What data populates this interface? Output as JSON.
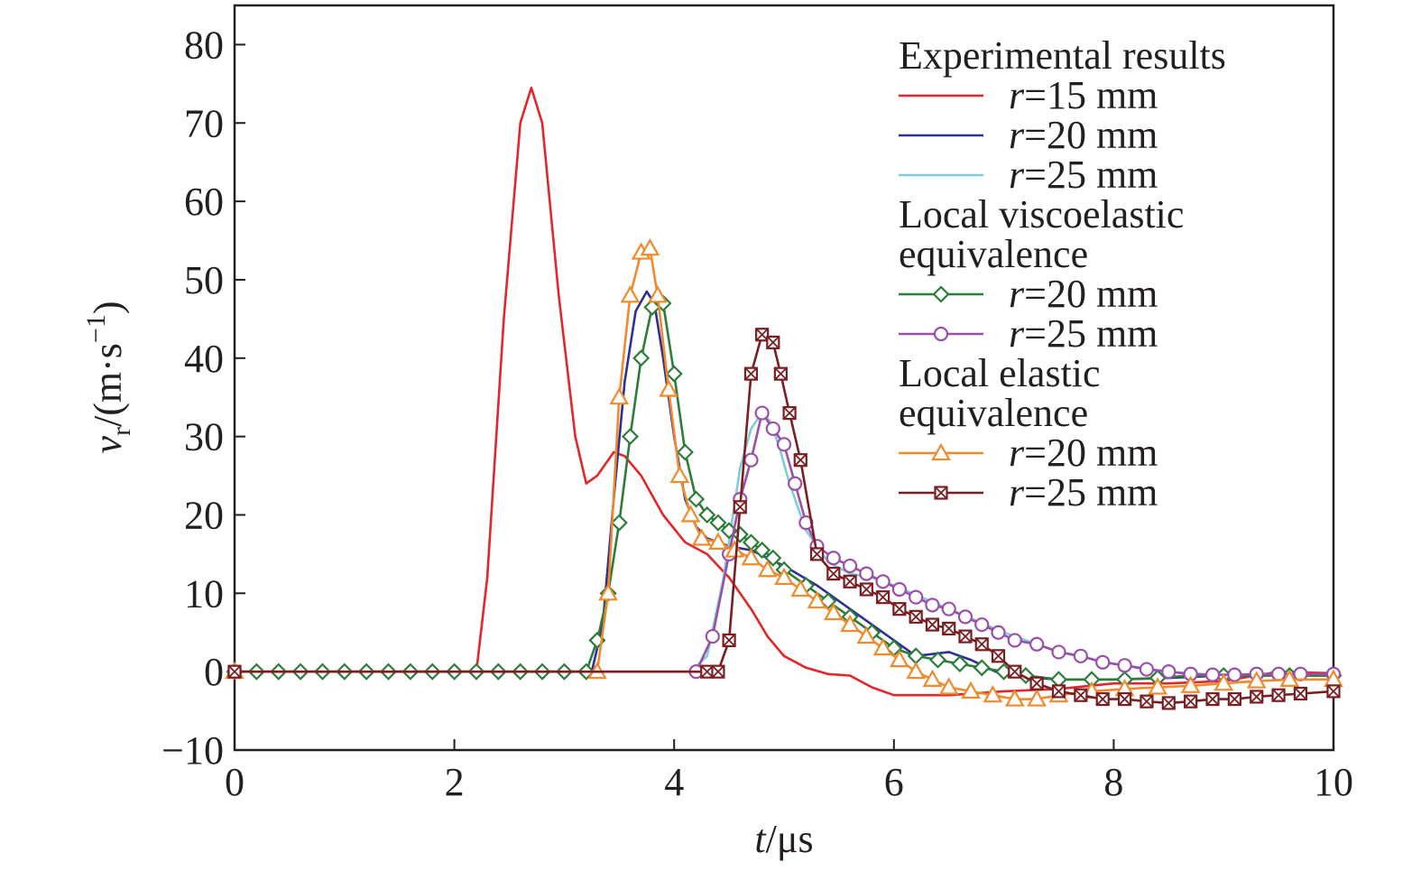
{
  "chart_data": {
    "type": "line",
    "xlabel_italic": "t",
    "xlabel_rest": "/μs",
    "ylabel_italic": "v",
    "ylabel_sub": "r",
    "ylabel_rest_a": "/(m·s",
    "ylabel_sup": "−1",
    "ylabel_rest_b": ")",
    "xlim": [
      0,
      10
    ],
    "ylim": [
      -10,
      85
    ],
    "x_ticks": [
      0,
      2,
      4,
      6,
      8,
      10
    ],
    "x_tick_labels": [
      "0",
      "2",
      "4",
      "6",
      "8",
      "10"
    ],
    "y_ticks": [
      -10,
      0,
      10,
      20,
      30,
      40,
      50,
      60,
      70,
      80
    ],
    "y_tick_labels": [
      "−10",
      "0",
      "10",
      "20",
      "30",
      "40",
      "50",
      "60",
      "70",
      "80"
    ],
    "grid": false,
    "legend_position": "top-right",
    "legend_groups": [
      {
        "heading_lines": [
          "Experimental results"
        ],
        "series": [
          0,
          1,
          2
        ]
      },
      {
        "heading_lines": [
          "Local viscoelastic",
          "equivalence"
        ],
        "series": [
          3,
          4
        ]
      },
      {
        "heading_lines": [
          "Local elastic",
          "equivalence"
        ],
        "series": [
          5,
          6
        ]
      }
    ],
    "series": [
      {
        "name_italic": "r",
        "name_rest": "=15 mm",
        "color": "#e3262a",
        "marker": "none",
        "x": [
          0,
          2.2,
          2.3,
          2.45,
          2.6,
          2.7,
          2.8,
          2.95,
          3.1,
          3.2,
          3.3,
          3.45,
          3.55,
          3.7,
          3.9,
          4.1,
          4.3,
          4.5,
          4.7,
          4.85,
          5.0,
          5.2,
          5.4,
          5.6,
          5.8,
          6.0,
          6.5,
          7.0,
          7.5,
          8.0,
          8.5,
          9.0,
          9.5,
          10
        ],
        "y": [
          0,
          0,
          12,
          45,
          70,
          74.5,
          70,
          48,
          30,
          24,
          25,
          28,
          27.5,
          25,
          20,
          16.5,
          15,
          12,
          8,
          4.5,
          2,
          0.5,
          -0.3,
          -0.5,
          -2,
          -3,
          -3,
          -2.5,
          -2.2,
          -1.5,
          -1.5,
          -1.2,
          0,
          -0.2
        ]
      },
      {
        "name_italic": "r",
        "name_rest": "=20 mm",
        "color": "#2e3192",
        "marker": "none",
        "x": [
          0,
          3.25,
          3.35,
          3.45,
          3.55,
          3.65,
          3.75,
          3.82,
          3.9,
          4.0,
          4.1,
          4.2,
          4.3,
          4.5,
          4.7,
          5.0,
          5.3,
          5.6,
          5.9,
          6.2,
          6.5,
          6.7,
          7.0,
          7.5,
          8.0,
          8.5,
          9.0,
          9.5,
          10
        ],
        "y": [
          0,
          0,
          6,
          22,
          37,
          46,
          48.5,
          47,
          40,
          30,
          22,
          18.5,
          17,
          16,
          15.5,
          13.5,
          11,
          8,
          5,
          2,
          2.5,
          1.5,
          -0.5,
          -1,
          -1,
          -0.8,
          -0.5,
          -0.5,
          -0.5
        ]
      },
      {
        "name_italic": "r",
        "name_rest": "=25 mm",
        "color": "#80ccd8",
        "marker": "none",
        "x": [
          0,
          4.15,
          4.3,
          4.45,
          4.6,
          4.7,
          4.8,
          4.87,
          4.95,
          5.05,
          5.2,
          5.4,
          5.6,
          5.8,
          6.0,
          6.5,
          7.0,
          7.5,
          8.0,
          8.5,
          9.0,
          9.5,
          10
        ],
        "y": [
          0,
          0,
          2,
          12,
          26,
          31,
          33,
          32,
          29,
          24,
          18,
          14,
          12.5,
          12,
          11,
          8,
          5,
          2.5,
          1,
          0,
          -0.5,
          -0.3,
          -0.5
        ]
      },
      {
        "name_italic": "r",
        "name_rest": "=20 mm",
        "color": "#2c7c3a",
        "marker": "diamond",
        "x": [
          0,
          0.2,
          0.4,
          0.6,
          0.8,
          1.0,
          1.2,
          1.4,
          1.6,
          1.8,
          2.0,
          2.2,
          2.4,
          2.6,
          2.8,
          3.0,
          3.2,
          3.3,
          3.4,
          3.5,
          3.6,
          3.7,
          3.8,
          3.9,
          4.0,
          4.1,
          4.2,
          4.3,
          4.4,
          4.5,
          4.6,
          4.7,
          4.8,
          4.9,
          5.0,
          5.2,
          5.4,
          5.6,
          5.8,
          6.0,
          6.2,
          6.4,
          6.6,
          6.8,
          7.0,
          7.2,
          7.5,
          7.8,
          8.1,
          8.4,
          8.7,
          9.0,
          9.3,
          9.6,
          10
        ],
        "y": [
          0,
          0,
          0,
          0,
          0,
          0,
          0,
          0,
          0,
          0,
          0,
          0,
          0,
          0,
          0,
          0,
          0,
          4,
          10,
          19,
          30,
          40,
          46.5,
          47,
          38,
          28,
          22,
          20,
          19,
          18,
          17.5,
          16.5,
          15.5,
          14.5,
          13,
          11,
          9,
          7,
          5,
          3,
          2,
          1.5,
          1,
          0.5,
          0,
          -0.5,
          -1,
          -1,
          -1,
          -0.8,
          -0.5,
          -0.5,
          -0.5,
          -0.5,
          -0.5
        ]
      },
      {
        "name_italic": "r",
        "name_rest": "=25 mm",
        "color": "#9a4fa8",
        "marker": "circle",
        "x": [
          0,
          4.2,
          4.35,
          4.5,
          4.6,
          4.7,
          4.8,
          4.9,
          5.0,
          5.1,
          5.2,
          5.3,
          5.45,
          5.6,
          5.75,
          5.9,
          6.05,
          6.2,
          6.35,
          6.5,
          6.65,
          6.8,
          6.95,
          7.1,
          7.3,
          7.5,
          7.7,
          7.9,
          8.1,
          8.3,
          8.5,
          8.7,
          8.9,
          9.1,
          9.3,
          9.5,
          9.7,
          10
        ],
        "y": [
          0,
          0,
          4.5,
          15,
          22,
          27,
          33,
          31,
          29,
          24,
          19,
          16,
          14.5,
          13.5,
          12.5,
          11.5,
          10.5,
          9.5,
          8.5,
          8,
          7,
          6,
          5,
          4,
          3.5,
          2.5,
          2,
          1.2,
          0.8,
          0.3,
          0,
          -0.3,
          -0.4,
          -0.4,
          -0.3,
          -0.3,
          -0.3,
          -0.3
        ]
      },
      {
        "name_italic": "r",
        "name_rest": "=20 mm",
        "color": "#f08a2c",
        "marker": "triangle",
        "x": [
          0,
          3.3,
          3.4,
          3.5,
          3.6,
          3.7,
          3.78,
          3.85,
          3.95,
          4.05,
          4.15,
          4.25,
          4.4,
          4.55,
          4.7,
          4.85,
          5.0,
          5.15,
          5.3,
          5.45,
          5.6,
          5.75,
          5.9,
          6.05,
          6.2,
          6.35,
          6.5,
          6.7,
          6.9,
          7.1,
          7.3,
          7.5,
          7.8,
          8.1,
          8.4,
          8.7,
          9.0,
          9.3,
          9.6,
          10
        ],
        "y": [
          0,
          0,
          10,
          35,
          48,
          53.5,
          54,
          48,
          36,
          25,
          20,
          17,
          16.5,
          15.5,
          14.5,
          13,
          12,
          10.5,
          9,
          7.5,
          6,
          4.5,
          3,
          1.5,
          0,
          -1,
          -2,
          -2.5,
          -3,
          -3.5,
          -3.5,
          -3,
          -2.5,
          -2.2,
          -2,
          -1.8,
          -1.5,
          -1.2,
          -1,
          -1
        ]
      },
      {
        "name_italic": "r",
        "name_rest": "=25 mm",
        "color": "#7a1e22",
        "marker": "boxx",
        "x": [
          0,
          4.3,
          4.4,
          4.5,
          4.6,
          4.7,
          4.8,
          4.9,
          4.97,
          5.05,
          5.15,
          5.3,
          5.45,
          5.6,
          5.75,
          5.9,
          6.05,
          6.2,
          6.35,
          6.5,
          6.65,
          6.8,
          6.95,
          7.1,
          7.3,
          7.5,
          7.7,
          7.9,
          8.1,
          8.3,
          8.5,
          8.7,
          8.9,
          9.1,
          9.3,
          9.5,
          9.7,
          10
        ],
        "y": [
          0,
          0,
          0,
          4,
          21,
          38,
          43,
          42,
          38,
          33,
          27,
          15,
          12.5,
          11.5,
          10.5,
          9.5,
          8,
          7,
          6,
          5.5,
          4.5,
          3.5,
          2,
          0,
          -1.5,
          -2.5,
          -3,
          -3.5,
          -3.5,
          -3.8,
          -4,
          -3.8,
          -3.5,
          -3.5,
          -3.2,
          -3,
          -2.8,
          -2.5
        ]
      }
    ]
  }
}
